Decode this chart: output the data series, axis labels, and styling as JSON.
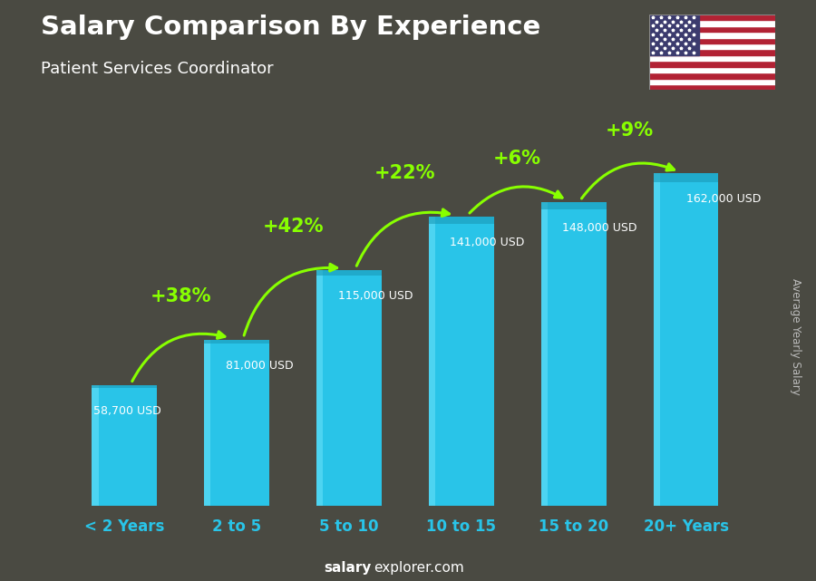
{
  "title": "Salary Comparison By Experience",
  "subtitle": "Patient Services Coordinator",
  "categories": [
    "< 2 Years",
    "2 to 5",
    "5 to 10",
    "10 to 15",
    "15 to 20",
    "20+ Years"
  ],
  "values": [
    58700,
    81000,
    115000,
    141000,
    148000,
    162000
  ],
  "salary_labels": [
    "58,700 USD",
    "81,000 USD",
    "115,000 USD",
    "141,000 USD",
    "148,000 USD",
    "162,000 USD"
  ],
  "pct_changes": [
    "+38%",
    "+42%",
    "+22%",
    "+6%",
    "+9%"
  ],
  "bar_face_color": "#29c4e8",
  "bar_left_color": "#5ddcf5",
  "bar_top_color": "#1a9ab8",
  "bg_color": "#3a3a3a",
  "title_color": "#ffffff",
  "subtitle_color": "#29c4e8",
  "label_color": "#dddddd",
  "pct_color": "#88ff00",
  "xtick_color": "#29c4e8",
  "ylabel_text": "Average Yearly Salary",
  "footer_bold": "salary",
  "footer_normal": "explorer.com"
}
